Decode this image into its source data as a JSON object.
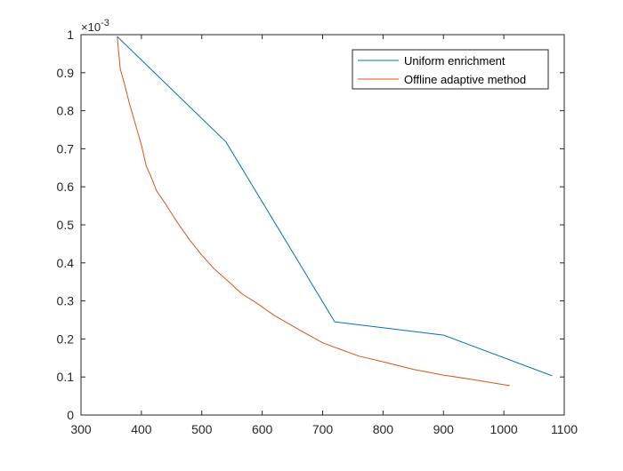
{
  "chart_data": {
    "type": "line",
    "title": "",
    "xlabel": "",
    "ylabel": "",
    "xlim": [
      300,
      1100
    ],
    "ylim": [
      0,
      1
    ],
    "x_ticks": [
      "300",
      "400",
      "500",
      "600",
      "700",
      "800",
      "900",
      "1000",
      "1100"
    ],
    "y_ticks": [
      "0",
      "0.1",
      "0.2",
      "0.3",
      "0.4",
      "0.5",
      "0.6",
      "0.7",
      "0.8",
      "0.9",
      "1"
    ],
    "y_exponent": {
      "base": "×10",
      "power": "-3"
    },
    "grid": false,
    "legend_position": "top-right",
    "series": [
      {
        "name": "Uniform enrichment",
        "color": "#0072BD",
        "x": [
          360,
          540,
          720,
          900,
          1080
        ],
        "y": [
          0.995,
          0.718,
          0.245,
          0.21,
          0.103
        ]
      },
      {
        "name": "Offline adaptive method",
        "color": "#D95319",
        "x": [
          360,
          365,
          372,
          380,
          390,
          400,
          408,
          415,
          425,
          440,
          460,
          480,
          500,
          520,
          545,
          565,
          590,
          620,
          660,
          700,
          720,
          760,
          800,
          850,
          900,
          950,
          1010
        ],
        "y": [
          0.995,
          0.91,
          0.87,
          0.82,
          0.765,
          0.71,
          0.655,
          0.63,
          0.59,
          0.555,
          0.505,
          0.46,
          0.42,
          0.385,
          0.35,
          0.32,
          0.295,
          0.262,
          0.225,
          0.19,
          0.178,
          0.155,
          0.14,
          0.12,
          0.105,
          0.093,
          0.077
        ]
      }
    ]
  }
}
